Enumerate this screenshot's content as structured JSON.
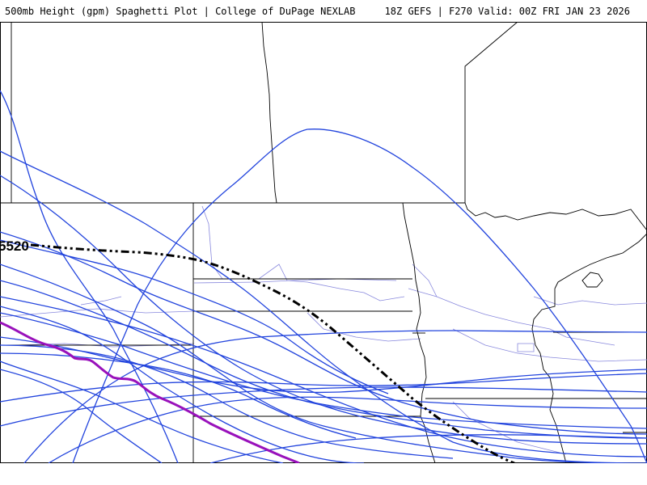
{
  "header": {
    "left_title": "500mb Height (gpm) Spaghetti Plot | College of DuPage NEXLAB",
    "right_title": "18Z GEFS | F270 Valid: 00Z FRI JAN 23 2026"
  },
  "map": {
    "contour_label": "5520",
    "colors": {
      "member_line": "#2244dd",
      "control_line": "#9911bb",
      "mean_line": "#000000",
      "state_border": "#000000",
      "county_road": "#8888dd"
    },
    "line_styles": {
      "ensemble_members": "solid blue",
      "highlighted_member": "solid purple",
      "ensemble_mean": "dash-dot black"
    }
  }
}
